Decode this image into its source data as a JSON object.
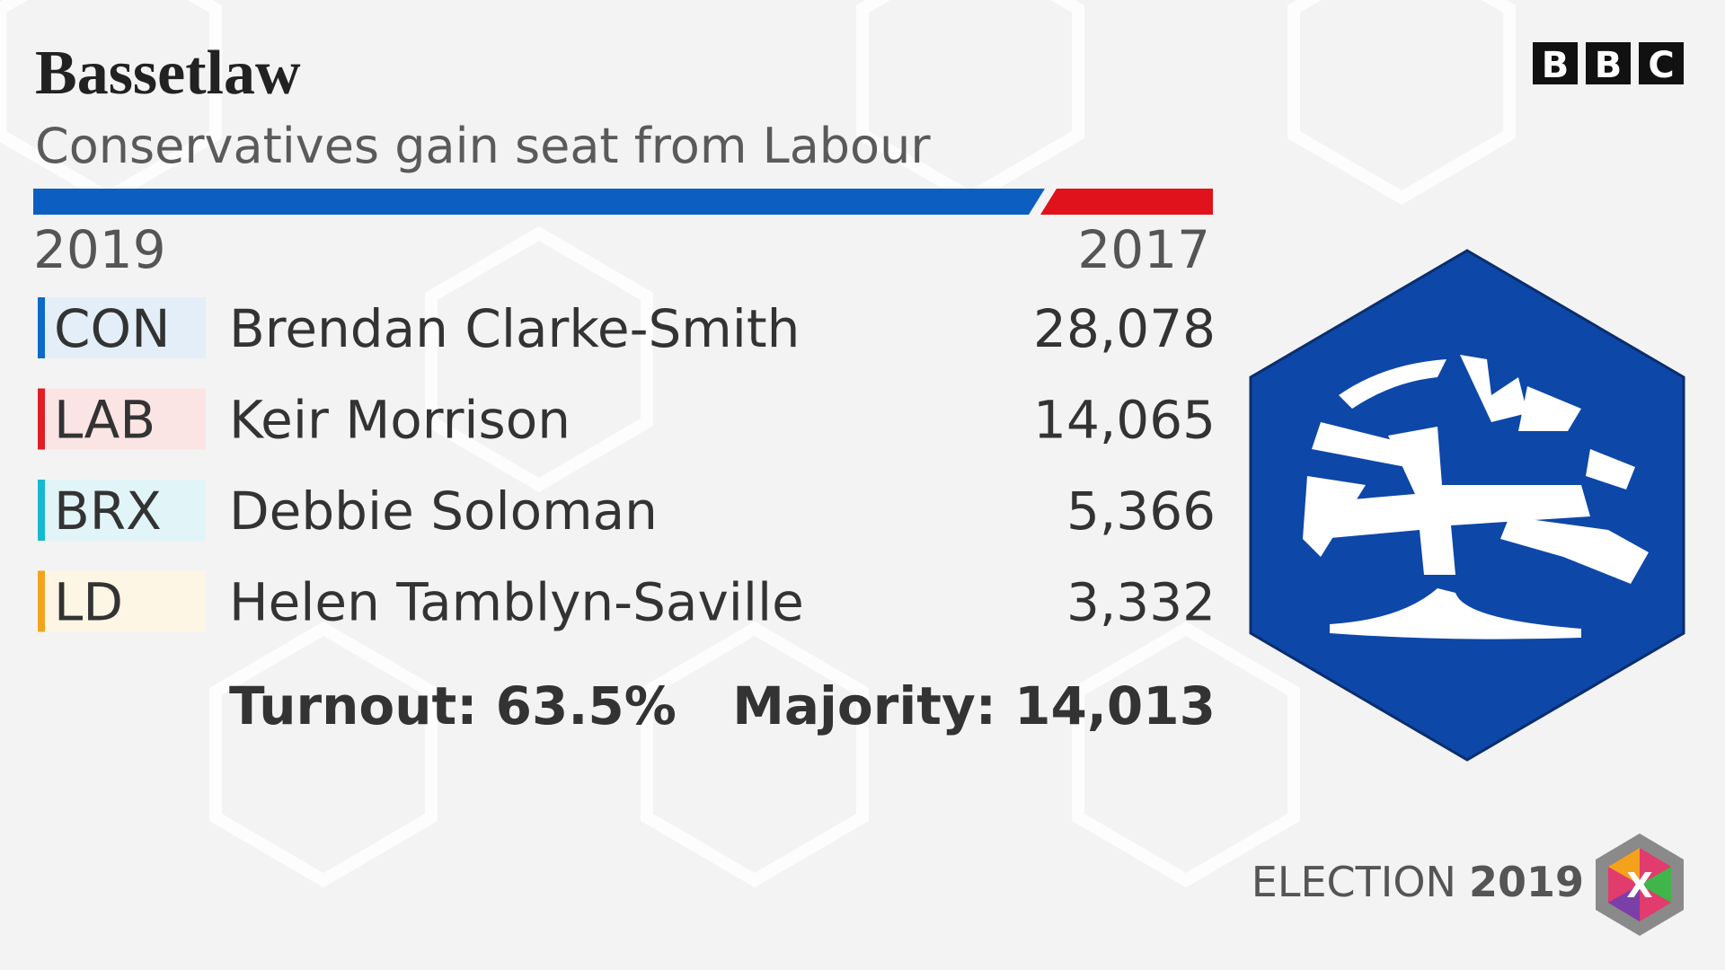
{
  "header": {
    "title": "Bassetlaw",
    "subtitle": "Conservatives gain seat from Labour",
    "brand": [
      "B",
      "B",
      "C"
    ]
  },
  "years": {
    "current": "2019",
    "previous": "2017"
  },
  "results": [
    {
      "party": "CON",
      "candidate": "Brendan Clarke-Smith",
      "votes": "28,078",
      "color": "#0c6ac8",
      "tint": "#e3eef9"
    },
    {
      "party": "LAB",
      "candidate": "Keir Morrison",
      "votes": "14,065",
      "color": "#e01e24",
      "tint": "#fbe4e4"
    },
    {
      "party": "BRX",
      "candidate": "Debbie Soloman",
      "votes": "5,366",
      "color": "#17b9d0",
      "tint": "#e1f5f8"
    },
    {
      "party": "LD",
      "candidate": "Helen Tamblyn-Saville",
      "votes": "3,332",
      "color": "#f2a51c",
      "tint": "#fdf6e4"
    }
  ],
  "summary": {
    "turnout": "Turnout: 63.5%",
    "majority": "Majority: 14,013"
  },
  "footer": {
    "label": "ELECTION",
    "year": "2019",
    "badge": "X"
  }
}
